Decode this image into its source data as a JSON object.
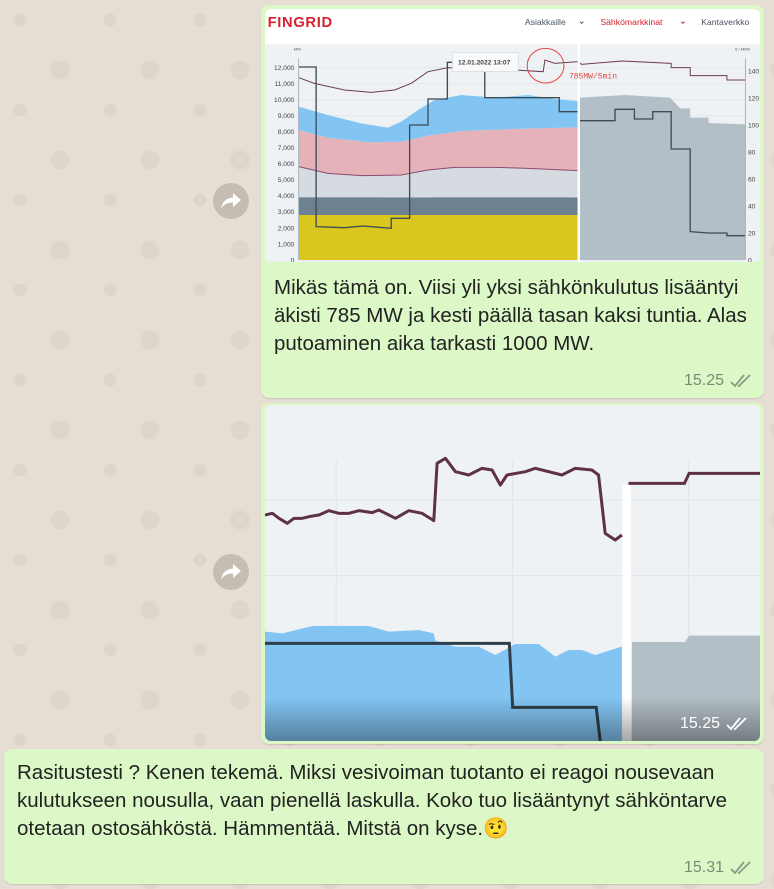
{
  "messages": [
    {
      "image": {
        "brand": "FINGRID",
        "nav": [
          "Asiakkaille",
          "Sähkömarkkinat",
          "Kantaverkko"
        ],
        "left_axis_unit": "MW",
        "right_axis_unit": "€ / MWh",
        "left_ticks": [
          "0",
          "1,000",
          "2,000",
          "3,000",
          "4,000",
          "5,000",
          "6,000",
          "7,000",
          "8,000",
          "9,000",
          "10,000",
          "11,000",
          "12,000"
        ],
        "right_ticks": [
          "0",
          "20",
          "40",
          "60",
          "80",
          "100",
          "120",
          "140"
        ],
        "tooltip": "12.01.2022 13:07",
        "annotation": "785MW/5min",
        "colors": {
          "brand": "#d8202f",
          "hydro": "#83c5f2",
          "import": "#e5b2ba",
          "nuclear": "#d5dbe0",
          "other": "#6c8290",
          "base": "#d9c61e",
          "forecast": "#b3bfc6",
          "consumption": "#6e3a55"
        }
      },
      "text": "Mikäs tämä on. Viisi yli yksi sähkönkulutus lisääntyi äkisti 785 MW ja kesti päällä tasan kaksi tuntia. Alas putoaminen aika tarkasti 1000 MW.",
      "time": "15.25"
    },
    {
      "time": "15.25"
    },
    {
      "text": "Rasitustesti ? Kenen tekemä. Miksi vesivoiman tuotanto ei reagoi nousevaan kulutukseen nousulla, vaan pienellä laskulla. Koko tuo lisääntynyt sähköntarve otetaan ostosähköstä. Hämmentää. Mitstä on kyse.",
      "emoji": "🤨",
      "time": "15.31"
    }
  ]
}
